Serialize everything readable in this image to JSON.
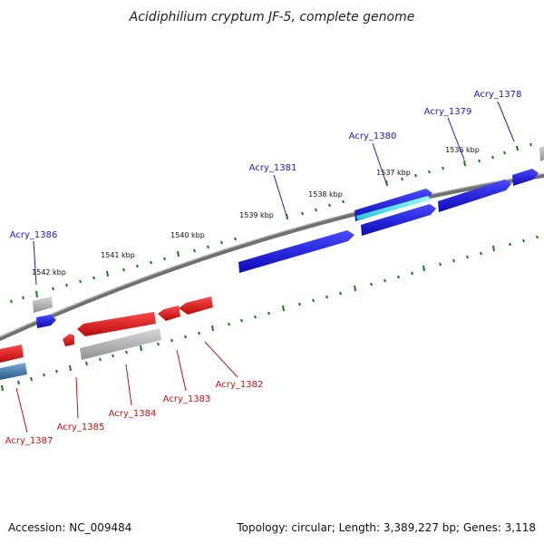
{
  "title": "Acidiphilium cryptum JF-5, complete genome",
  "footer": {
    "accession": "Accession: NC_009484",
    "summary": "Topology: circular; Length: 3,389,227 bp; Genes: 3,118"
  },
  "colors": {
    "forward": "#1515e0",
    "reverse": "#e01515",
    "gray": "#b5b5b5",
    "cyan": "#30e8f0",
    "steel": "#4a82b4",
    "backbone": "#8a8a8a",
    "tick": "#1a7a1a"
  },
  "kbp_labels": [
    "1536 kbp",
    "1537 kbp",
    "1538 kbp",
    "1539 kbp",
    "1540 kbp",
    "1541 kbp",
    "1542 kbp"
  ],
  "forward_genes": [
    "Acry_1378",
    "Acry_1379",
    "Acry_1380",
    "Acry_1381",
    "Acry_1386"
  ],
  "reverse_genes": [
    "Acry_1382",
    "Acry_1383",
    "Acry_1384",
    "Acry_1385",
    "Acry_1387"
  ]
}
